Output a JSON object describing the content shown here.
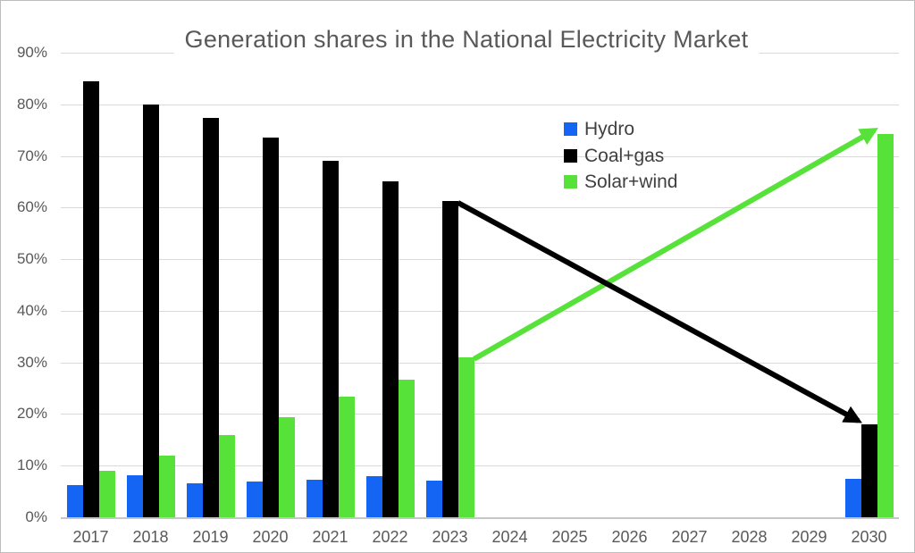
{
  "chart_data": {
    "type": "bar",
    "title": "Generation shares in the National Electricity Market",
    "categories": [
      "2017",
      "2018",
      "2019",
      "2020",
      "2021",
      "2022",
      "2023",
      "2024",
      "2025",
      "2026",
      "2027",
      "2028",
      "2029",
      "2030"
    ],
    "series": [
      {
        "name": "Hydro",
        "color": "#1565F5",
        "values": [
          6.3,
          8.1,
          6.6,
          7.0,
          7.2,
          7.9,
          7.1,
          null,
          null,
          null,
          null,
          null,
          null,
          7.4
        ]
      },
      {
        "name": "Coal+gas",
        "color": "#000000",
        "values": [
          84.5,
          80.0,
          77.3,
          73.5,
          69.0,
          65.0,
          61.3,
          null,
          null,
          null,
          null,
          null,
          null,
          18.0
        ]
      },
      {
        "name": "Solar+wind",
        "color": "#57E23A",
        "values": [
          9.0,
          12.0,
          16.0,
          19.3,
          23.4,
          26.7,
          31.0,
          null,
          null,
          null,
          null,
          null,
          null,
          74.3
        ]
      }
    ],
    "xlabel": "",
    "ylabel": "",
    "ylim": [
      0,
      90
    ],
    "ytick_labels": [
      "0%",
      "10%",
      "20%",
      "30%",
      "40%",
      "50%",
      "60%",
      "70%",
      "80%",
      "90%"
    ],
    "grid": "horizontal-only",
    "legend_position": "inside-upper-middle",
    "annotations": [
      {
        "kind": "trend-arrow",
        "series": "Solar+wind",
        "color": "#57E23A",
        "from": {
          "category": "2023",
          "value": 31.0
        },
        "to": {
          "category": "2030",
          "value": 74.3
        }
      },
      {
        "kind": "trend-arrow",
        "series": "Coal+gas",
        "color": "#000000",
        "from": {
          "category": "2023",
          "value": 61.3
        },
        "to": {
          "category": "2030",
          "value": 18.0
        }
      }
    ]
  },
  "colors": {
    "title_text": "#595959",
    "axis_text": "#595959",
    "legend_text": "#404040",
    "gridline": "#d9d9d9",
    "axis_line": "#c6c6c6",
    "background": "#ffffff",
    "border": "#bdbdbd"
  }
}
